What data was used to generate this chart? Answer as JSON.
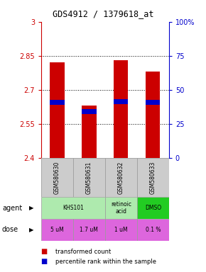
{
  "title": "GDS4912 / 1379618_at",
  "samples": [
    "GSM580630",
    "GSM580631",
    "GSM580632",
    "GSM580633"
  ],
  "red_values": [
    2.82,
    2.63,
    2.83,
    2.78
  ],
  "blue_values": [
    2.645,
    2.605,
    2.648,
    2.643
  ],
  "ylim_left": [
    2.4,
    3.0
  ],
  "ylim_right": [
    0,
    100
  ],
  "yticks_left": [
    2.4,
    2.55,
    2.7,
    2.85,
    3.0
  ],
  "yticks_right": [
    0,
    25,
    50,
    75,
    100
  ],
  "ytick_labels_left": [
    "2.4",
    "2.55",
    "2.7",
    "2.85",
    "3"
  ],
  "ytick_labels_right": [
    "0",
    "25",
    "50",
    "75",
    "100%"
  ],
  "agents": [
    [
      "KHS101",
      2
    ],
    [
      "retinoic\nacid",
      1
    ],
    [
      "DMSO",
      1
    ]
  ],
  "agent_colors": [
    "#aeeaae",
    "#aeeaae",
    "#22cc22"
  ],
  "doses": [
    "5 uM",
    "1.7 uM",
    "1 uM",
    "0.1 %"
  ],
  "dose_color": "#dd66dd",
  "bar_color_red": "#cc0000",
  "bar_color_blue": "#0000cc",
  "bar_width": 0.45,
  "background_color": "#ffffff",
  "left_tick_color": "#cc0000",
  "right_tick_color": "#0000cc",
  "sample_bg": "#cccccc"
}
